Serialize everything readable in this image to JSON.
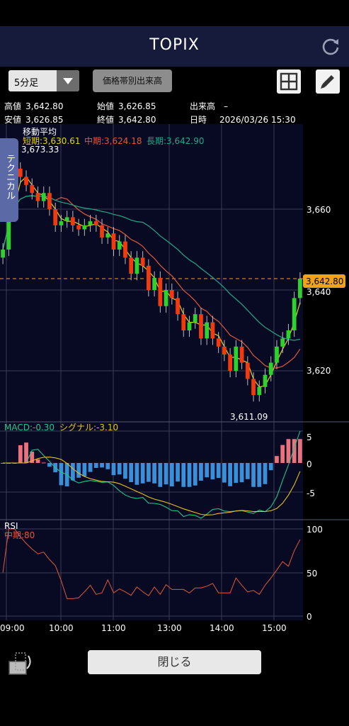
{
  "app": {
    "title": "TOPIX"
  },
  "toolbar": {
    "interval_selected": "5分足",
    "price_volume_button": "価格帯別出来高",
    "layout_icon": "grid-icon",
    "draw_icon": "pencil-icon"
  },
  "quote": {
    "high_label": "高値",
    "high_value": "3,642.80",
    "open_label": "始値",
    "open_value": "3,626.85",
    "volume_label": "出来高",
    "volume_value": "–",
    "low_label": "安値",
    "low_value": "3,626.85",
    "close_label": "終値",
    "close_value": "3,642.80",
    "datetime_label": "日時",
    "datetime_value": "2026/03/26 15:30"
  },
  "side_tab": {
    "label": "テクニカル"
  },
  "moving_average": {
    "heading": "移動平均",
    "short_label": "短期:3,630.61",
    "mid_label": "中期:3,624.18",
    "long_label": "長期:3,642.90"
  },
  "price_panel": {
    "y_ticks": [
      "3,660",
      "3,640",
      "3,620"
    ],
    "current_price_tag": "3,642.80",
    "high_annotation": "3,673.33",
    "low_annotation": "3,611.09"
  },
  "macd_panel": {
    "macd_label": "MACD:-0.30",
    "signal_label": "シグナル:-3.10",
    "y_ticks": [
      "5",
      "0",
      "-5"
    ]
  },
  "rsi_panel": {
    "title": "RSI",
    "mid_label": "中期:80",
    "y_ticks": [
      "100",
      "50",
      "0"
    ]
  },
  "x_ticks": [
    "09:00",
    "10:00",
    "11:00",
    "13:00",
    "14:00",
    "15:00"
  ],
  "footer": {
    "close_button": "閉じる",
    "rotate_icon": "rotate-screen-icon"
  },
  "colors": {
    "up": "#2fd12f",
    "down": "#f23a0e",
    "short_ma": "#e6d21a",
    "mid_ma": "#e0583a",
    "long_ma": "#20a98a",
    "macd_pos": "#e9727d",
    "macd_neg": "#3a8fd8",
    "header_bg": "#161b3c",
    "tag": "#f0a318"
  },
  "chart_data": {
    "type": "candlestick",
    "price_axis": {
      "ticks": [
        3620,
        3640,
        3660
      ]
    },
    "high": 3673.33,
    "low": 3611.09,
    "last": 3642.8,
    "x_labels": [
      "09:00",
      "10:00",
      "11:00",
      "13:00",
      "14:00",
      "15:00"
    ],
    "close_series": [
      3650,
      3662,
      3670,
      3668,
      3666,
      3664,
      3662,
      3664,
      3660,
      3656,
      3657,
      3658,
      3656,
      3655,
      3656,
      3657,
      3656,
      3653,
      3654,
      3650,
      3652,
      3648,
      3644,
      3648,
      3646,
      3640,
      3643,
      3636,
      3640,
      3638,
      3634,
      3630,
      3632,
      3634,
      3628,
      3632,
      3628,
      3626,
      3624,
      3620,
      3626,
      3622,
      3618,
      3614,
      3616,
      3619,
      3622,
      3626,
      3628,
      3630,
      3638,
      3642.8
    ]
  }
}
